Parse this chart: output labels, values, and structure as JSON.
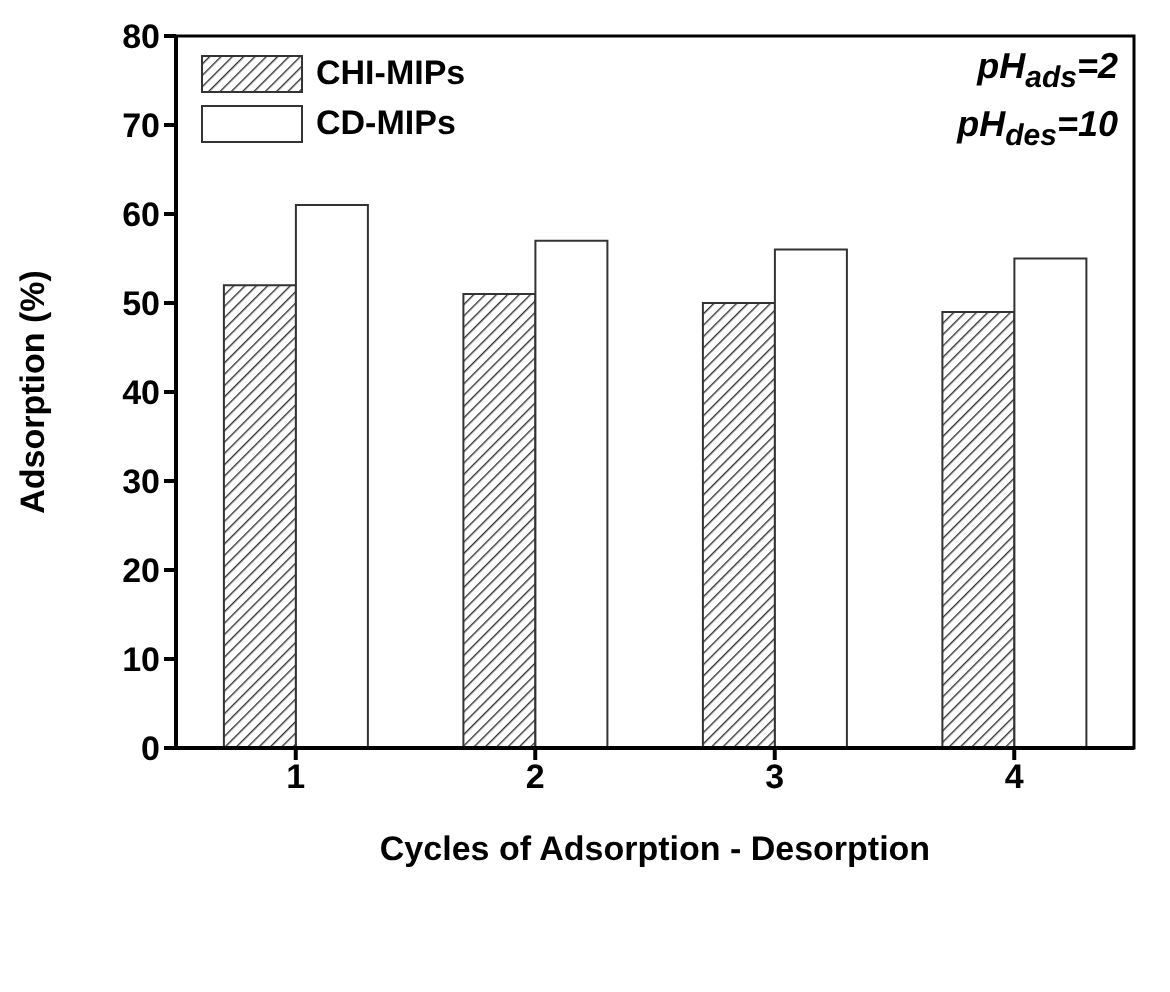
{
  "chart_data": {
    "type": "bar",
    "xlabel": "Cycles of Adsorption - Desorption",
    "ylabel": "Adsorption (%)",
    "categories": [
      "1",
      "2",
      "3",
      "4"
    ],
    "series": [
      {
        "name": "CHI-MIPs",
        "color": "#333333",
        "values": [
          52,
          51,
          50,
          49
        ]
      },
      {
        "name": "CD-MIPs",
        "color": "#ffffff",
        "values": [
          61,
          57,
          56,
          55
        ]
      }
    ],
    "ylim": [
      0,
      80
    ],
    "yticks": [
      0,
      10,
      20,
      30,
      40,
      50,
      60,
      70,
      80
    ],
    "legend": "top left",
    "grid": false,
    "annotations": [
      "pH$_{ads}$=2",
      "pH$_{des}$=10"
    ]
  }
}
